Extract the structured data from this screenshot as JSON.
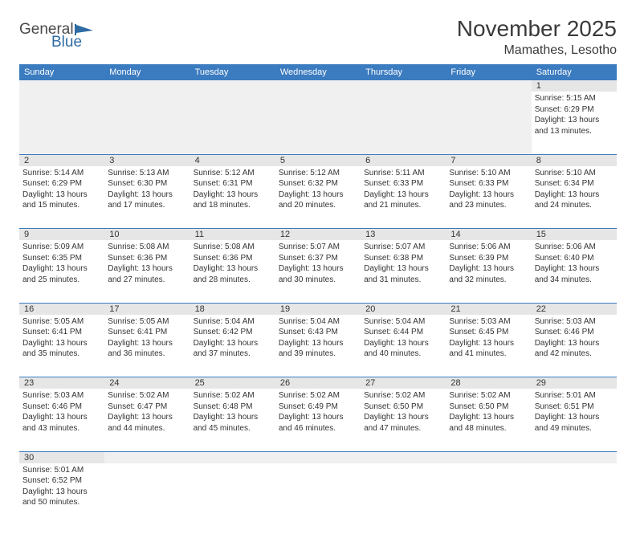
{
  "header": {
    "logo_general": "General",
    "logo_blue": "Blue",
    "month_title": "November 2025",
    "location": "Mamathes, Lesotho"
  },
  "colors": {
    "header_bg": "#3b7bbf",
    "header_text": "#ffffff",
    "num_bg": "#e6e6e6",
    "blank_bg": "#f0f0f0",
    "border": "#3b7bbf",
    "text": "#333333",
    "logo_blue": "#2e6ca4",
    "logo_gray": "#4a4a4a"
  },
  "day_names": [
    "Sunday",
    "Monday",
    "Tuesday",
    "Wednesday",
    "Thursday",
    "Friday",
    "Saturday"
  ],
  "weeks": [
    {
      "nums": [
        "",
        "",
        "",
        "",
        "",
        "",
        "1"
      ],
      "cells": [
        null,
        null,
        null,
        null,
        null,
        null,
        {
          "sunrise": "Sunrise: 5:15 AM",
          "sunset": "Sunset: 6:29 PM",
          "daylight1": "Daylight: 13 hours",
          "daylight2": "and 13 minutes."
        }
      ]
    },
    {
      "nums": [
        "2",
        "3",
        "4",
        "5",
        "6",
        "7",
        "8"
      ],
      "cells": [
        {
          "sunrise": "Sunrise: 5:14 AM",
          "sunset": "Sunset: 6:29 PM",
          "daylight1": "Daylight: 13 hours",
          "daylight2": "and 15 minutes."
        },
        {
          "sunrise": "Sunrise: 5:13 AM",
          "sunset": "Sunset: 6:30 PM",
          "daylight1": "Daylight: 13 hours",
          "daylight2": "and 17 minutes."
        },
        {
          "sunrise": "Sunrise: 5:12 AM",
          "sunset": "Sunset: 6:31 PM",
          "daylight1": "Daylight: 13 hours",
          "daylight2": "and 18 minutes."
        },
        {
          "sunrise": "Sunrise: 5:12 AM",
          "sunset": "Sunset: 6:32 PM",
          "daylight1": "Daylight: 13 hours",
          "daylight2": "and 20 minutes."
        },
        {
          "sunrise": "Sunrise: 5:11 AM",
          "sunset": "Sunset: 6:33 PM",
          "daylight1": "Daylight: 13 hours",
          "daylight2": "and 21 minutes."
        },
        {
          "sunrise": "Sunrise: 5:10 AM",
          "sunset": "Sunset: 6:33 PM",
          "daylight1": "Daylight: 13 hours",
          "daylight2": "and 23 minutes."
        },
        {
          "sunrise": "Sunrise: 5:10 AM",
          "sunset": "Sunset: 6:34 PM",
          "daylight1": "Daylight: 13 hours",
          "daylight2": "and 24 minutes."
        }
      ]
    },
    {
      "nums": [
        "9",
        "10",
        "11",
        "12",
        "13",
        "14",
        "15"
      ],
      "cells": [
        {
          "sunrise": "Sunrise: 5:09 AM",
          "sunset": "Sunset: 6:35 PM",
          "daylight1": "Daylight: 13 hours",
          "daylight2": "and 25 minutes."
        },
        {
          "sunrise": "Sunrise: 5:08 AM",
          "sunset": "Sunset: 6:36 PM",
          "daylight1": "Daylight: 13 hours",
          "daylight2": "and 27 minutes."
        },
        {
          "sunrise": "Sunrise: 5:08 AM",
          "sunset": "Sunset: 6:36 PM",
          "daylight1": "Daylight: 13 hours",
          "daylight2": "and 28 minutes."
        },
        {
          "sunrise": "Sunrise: 5:07 AM",
          "sunset": "Sunset: 6:37 PM",
          "daylight1": "Daylight: 13 hours",
          "daylight2": "and 30 minutes."
        },
        {
          "sunrise": "Sunrise: 5:07 AM",
          "sunset": "Sunset: 6:38 PM",
          "daylight1": "Daylight: 13 hours",
          "daylight2": "and 31 minutes."
        },
        {
          "sunrise": "Sunrise: 5:06 AM",
          "sunset": "Sunset: 6:39 PM",
          "daylight1": "Daylight: 13 hours",
          "daylight2": "and 32 minutes."
        },
        {
          "sunrise": "Sunrise: 5:06 AM",
          "sunset": "Sunset: 6:40 PM",
          "daylight1": "Daylight: 13 hours",
          "daylight2": "and 34 minutes."
        }
      ]
    },
    {
      "nums": [
        "16",
        "17",
        "18",
        "19",
        "20",
        "21",
        "22"
      ],
      "cells": [
        {
          "sunrise": "Sunrise: 5:05 AM",
          "sunset": "Sunset: 6:41 PM",
          "daylight1": "Daylight: 13 hours",
          "daylight2": "and 35 minutes."
        },
        {
          "sunrise": "Sunrise: 5:05 AM",
          "sunset": "Sunset: 6:41 PM",
          "daylight1": "Daylight: 13 hours",
          "daylight2": "and 36 minutes."
        },
        {
          "sunrise": "Sunrise: 5:04 AM",
          "sunset": "Sunset: 6:42 PM",
          "daylight1": "Daylight: 13 hours",
          "daylight2": "and 37 minutes."
        },
        {
          "sunrise": "Sunrise: 5:04 AM",
          "sunset": "Sunset: 6:43 PM",
          "daylight1": "Daylight: 13 hours",
          "daylight2": "and 39 minutes."
        },
        {
          "sunrise": "Sunrise: 5:04 AM",
          "sunset": "Sunset: 6:44 PM",
          "daylight1": "Daylight: 13 hours",
          "daylight2": "and 40 minutes."
        },
        {
          "sunrise": "Sunrise: 5:03 AM",
          "sunset": "Sunset: 6:45 PM",
          "daylight1": "Daylight: 13 hours",
          "daylight2": "and 41 minutes."
        },
        {
          "sunrise": "Sunrise: 5:03 AM",
          "sunset": "Sunset: 6:46 PM",
          "daylight1": "Daylight: 13 hours",
          "daylight2": "and 42 minutes."
        }
      ]
    },
    {
      "nums": [
        "23",
        "24",
        "25",
        "26",
        "27",
        "28",
        "29"
      ],
      "cells": [
        {
          "sunrise": "Sunrise: 5:03 AM",
          "sunset": "Sunset: 6:46 PM",
          "daylight1": "Daylight: 13 hours",
          "daylight2": "and 43 minutes."
        },
        {
          "sunrise": "Sunrise: 5:02 AM",
          "sunset": "Sunset: 6:47 PM",
          "daylight1": "Daylight: 13 hours",
          "daylight2": "and 44 minutes."
        },
        {
          "sunrise": "Sunrise: 5:02 AM",
          "sunset": "Sunset: 6:48 PM",
          "daylight1": "Daylight: 13 hours",
          "daylight2": "and 45 minutes."
        },
        {
          "sunrise": "Sunrise: 5:02 AM",
          "sunset": "Sunset: 6:49 PM",
          "daylight1": "Daylight: 13 hours",
          "daylight2": "and 46 minutes."
        },
        {
          "sunrise": "Sunrise: 5:02 AM",
          "sunset": "Sunset: 6:50 PM",
          "daylight1": "Daylight: 13 hours",
          "daylight2": "and 47 minutes."
        },
        {
          "sunrise": "Sunrise: 5:02 AM",
          "sunset": "Sunset: 6:50 PM",
          "daylight1": "Daylight: 13 hours",
          "daylight2": "and 48 minutes."
        },
        {
          "sunrise": "Sunrise: 5:01 AM",
          "sunset": "Sunset: 6:51 PM",
          "daylight1": "Daylight: 13 hours",
          "daylight2": "and 49 minutes."
        }
      ]
    },
    {
      "nums": [
        "30",
        "",
        "",
        "",
        "",
        "",
        ""
      ],
      "cells": [
        {
          "sunrise": "Sunrise: 5:01 AM",
          "sunset": "Sunset: 6:52 PM",
          "daylight1": "Daylight: 13 hours",
          "daylight2": "and 50 minutes."
        },
        null,
        null,
        null,
        null,
        null,
        null
      ]
    }
  ]
}
